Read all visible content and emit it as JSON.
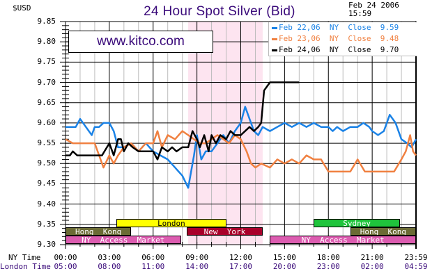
{
  "header": {
    "title": "24 Hour Spot Silver (Bid)",
    "currency_label": "$USD",
    "date": "Feb 24 2006",
    "time": "15:59",
    "watermark": "www.kitco.com"
  },
  "legend": [
    {
      "label": "Feb 22,06  NY  Close  9.59",
      "color": "#1a82e6"
    },
    {
      "label": "Feb 23,06  NY  Close  9.48",
      "color": "#f08040"
    },
    {
      "label": "Feb 24,06  NY  Close  9.70",
      "color": "#000000"
    }
  ],
  "axis": {
    "y_ticks": [
      "9.85",
      "9.80",
      "9.75",
      "9.70",
      "9.65",
      "9.60",
      "9.55",
      "9.50",
      "9.45",
      "9.40",
      "9.35",
      "9.30"
    ],
    "ny_time_label": "NY Time",
    "london_time_label": "London Time",
    "ny_ticks": [
      "00:00",
      "03:00",
      "06:00",
      "09:00",
      "12:00",
      "15:00",
      "18:00",
      "21:00",
      "23:59"
    ],
    "london_ticks": [
      "05:00",
      "08:00",
      "11:00",
      "14:00",
      "17:00",
      "20:00",
      "23:00",
      "02:00",
      "04:59"
    ]
  },
  "sessions": [
    {
      "name": "London",
      "start": 3.5,
      "end": 11.0,
      "row": 0,
      "bg": "#ffff00",
      "fg": "#000000"
    },
    {
      "name": "Hong  Kong",
      "start": 0.0,
      "end": 4.5,
      "row": 1,
      "bg": "#6b6b35",
      "fg": "#ffffff"
    },
    {
      "name": "New  York",
      "start": 8.3,
      "end": 13.5,
      "row": 1,
      "bg": "#a8002a",
      "fg": "#ffffff"
    },
    {
      "name": "NY  Access  Market",
      "start": 0.0,
      "end": 7.9,
      "row": 2,
      "bg": "#dc5cb0",
      "fg": "#ffffff"
    },
    {
      "name": "NY  Access  Market",
      "start": 14.0,
      "end": 24.0,
      "row": 2,
      "bg": "#dc5cb0",
      "fg": "#ffffff"
    },
    {
      "name": "Sydney",
      "start": 17.0,
      "end": 22.9,
      "row": 0,
      "bg": "#1fc43c",
      "fg": "#ffffff"
    },
    {
      "name": "Hong  Kong",
      "start": 19.5,
      "end": 24.0,
      "row": 1,
      "bg": "#6b6b35",
      "fg": "#ffffff"
    }
  ],
  "chart_data": {
    "type": "line",
    "title": "24 Hour Spot Silver (Bid)",
    "xlabel": "NY Time / London Time",
    "ylabel": "$USD",
    "ylim": [
      9.3,
      9.85
    ],
    "xlim_hours": [
      0,
      24
    ],
    "grid": true,
    "highlight_band_hours": [
      8.4,
      13.5
    ],
    "legend_position": "top-right",
    "series": [
      {
        "name": "Feb 22,06 NY Close 9.59",
        "color": "#1a82e6",
        "x": [
          0,
          0.7,
          1.0,
          1.4,
          1.8,
          2.0,
          2.3,
          2.6,
          3.0,
          3.3,
          3.6,
          4.0,
          4.5,
          5.0,
          5.5,
          6.0,
          6.5,
          7.0,
          7.5,
          8.0,
          8.4,
          8.8,
          9.0,
          9.3,
          9.6,
          10.0,
          10.4,
          10.8,
          11.2,
          11.6,
          12.0,
          12.3,
          12.6,
          12.9,
          13.2,
          13.5,
          14.0,
          14.5,
          15.0,
          15.5,
          16.0,
          16.5,
          17.0,
          17.5,
          18.0,
          18.3,
          18.6,
          19.0,
          19.5,
          20.0,
          20.4,
          20.8,
          21.0,
          21.4,
          21.8,
          22.2,
          22.6,
          23.0,
          23.4,
          23.7,
          24.0
        ],
        "y": [
          9.59,
          9.59,
          9.61,
          9.59,
          9.57,
          9.59,
          9.59,
          9.6,
          9.6,
          9.58,
          9.54,
          9.54,
          9.55,
          9.53,
          9.55,
          9.53,
          9.52,
          9.51,
          9.49,
          9.47,
          9.44,
          9.52,
          9.57,
          9.51,
          9.53,
          9.53,
          9.55,
          9.57,
          9.55,
          9.58,
          9.6,
          9.64,
          9.61,
          9.58,
          9.57,
          9.59,
          9.58,
          9.59,
          9.6,
          9.59,
          9.6,
          9.59,
          9.6,
          9.59,
          9.59,
          9.58,
          9.59,
          9.58,
          9.59,
          9.59,
          9.6,
          9.59,
          9.58,
          9.57,
          9.58,
          9.62,
          9.6,
          9.56,
          9.55,
          9.54,
          9.56
        ]
      },
      {
        "name": "Feb 23,06 NY Close 9.48",
        "color": "#f08040",
        "x": [
          0,
          0.5,
          1.0,
          1.5,
          2.0,
          2.3,
          2.6,
          3.0,
          3.3,
          3.6,
          4.0,
          4.5,
          5.0,
          5.5,
          6.0,
          6.3,
          6.6,
          7.0,
          7.5,
          8.0,
          8.4,
          8.8,
          9.2,
          9.6,
          10.0,
          10.4,
          10.8,
          11.2,
          11.6,
          12.0,
          12.4,
          12.7,
          13.0,
          13.4,
          14.0,
          14.5,
          15.0,
          15.5,
          16.0,
          16.5,
          17.0,
          17.5,
          18.0,
          18.5,
          18.7,
          19.0,
          19.5,
          20.0,
          20.5,
          21.0,
          21.5,
          22.0,
          22.5,
          23.0,
          23.3,
          23.6,
          23.8,
          24.0
        ],
        "y": [
          9.56,
          9.55,
          9.55,
          9.55,
          9.55,
          9.52,
          9.49,
          9.52,
          9.5,
          9.52,
          9.54,
          9.55,
          9.53,
          9.55,
          9.55,
          9.58,
          9.54,
          9.57,
          9.56,
          9.58,
          9.57,
          9.56,
          9.55,
          9.55,
          9.56,
          9.57,
          9.56,
          9.55,
          9.57,
          9.56,
          9.53,
          9.5,
          9.49,
          9.5,
          9.49,
          9.51,
          9.5,
          9.51,
          9.5,
          9.52,
          9.51,
          9.51,
          9.48,
          9.48,
          9.48,
          9.48,
          9.48,
          9.51,
          9.48,
          9.48,
          9.48,
          9.48,
          9.48,
          9.51,
          9.53,
          9.57,
          9.53,
          9.52
        ]
      },
      {
        "name": "Feb 24,06 NY Close 9.70",
        "color": "#000000",
        "x": [
          0,
          0.3,
          0.5,
          0.8,
          1.0,
          2.0,
          2.5,
          3.0,
          3.3,
          3.6,
          3.8,
          4.0,
          4.3,
          4.6,
          5.0,
          5.5,
          6.0,
          6.3,
          6.6,
          7.0,
          7.3,
          7.6,
          8.0,
          8.4,
          8.7,
          9.0,
          9.2,
          9.5,
          9.8,
          10.0,
          10.3,
          10.6,
          11.0,
          11.3,
          11.6,
          12.0,
          12.3,
          12.6,
          12.9,
          13.2,
          13.4,
          13.6,
          14.0,
          15.0,
          16.0
        ],
        "y": [
          9.52,
          9.52,
          9.53,
          9.52,
          9.52,
          9.52,
          9.52,
          9.55,
          9.52,
          9.56,
          9.56,
          9.53,
          9.55,
          9.54,
          9.53,
          9.53,
          9.53,
          9.51,
          9.54,
          9.53,
          9.54,
          9.53,
          9.54,
          9.54,
          9.58,
          9.56,
          9.54,
          9.57,
          9.53,
          9.57,
          9.55,
          9.57,
          9.56,
          9.58,
          9.57,
          9.57,
          9.58,
          9.59,
          9.58,
          9.59,
          9.6,
          9.68,
          9.7,
          9.7,
          9.7
        ]
      }
    ]
  }
}
